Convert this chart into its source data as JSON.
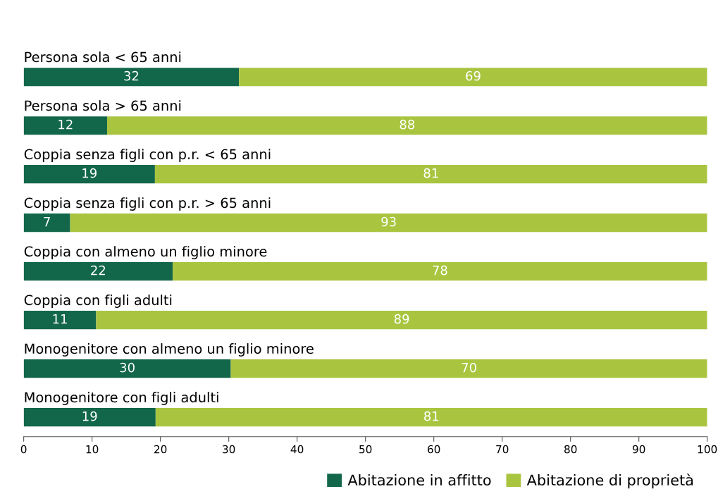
{
  "chart_data": {
    "type": "bar",
    "orientation": "horizontal",
    "stacked": true,
    "categories": [
      "Persona sola < 65 anni",
      "Persona sola > 65 anni",
      "Coppia senza figli con p.r. < 65 anni",
      "Coppia senza figli con p.r. > 65 anni",
      "Coppia con almeno un figlio minore",
      "Coppia con figli adulti",
      "Monogenitore con almeno un figlio minore",
      "Monogenitore con figli adulti"
    ],
    "series": [
      {
        "name": "Abitazione in affitto",
        "color": "#12674a",
        "values": [
          31.5,
          12.2,
          19.2,
          6.8,
          21.8,
          10.6,
          30.3,
          19.3
        ],
        "value_labels": [
          "32",
          "12",
          "19",
          "7",
          "22",
          "11",
          "30",
          "19"
        ]
      },
      {
        "name": "Abitazione di proprietà",
        "color": "#a9c540",
        "values": [
          68.5,
          87.8,
          80.8,
          93.2,
          78.2,
          89.4,
          69.7,
          80.7
        ],
        "value_labels": [
          "69",
          "88",
          "81",
          "93",
          "78",
          "89",
          "70",
          "81"
        ]
      }
    ],
    "xlim": [
      0,
      100
    ],
    "xticks": [
      0,
      10,
      20,
      30,
      40,
      50,
      60,
      70,
      80,
      90,
      100
    ],
    "legend": "bottom right",
    "grid": false
  }
}
